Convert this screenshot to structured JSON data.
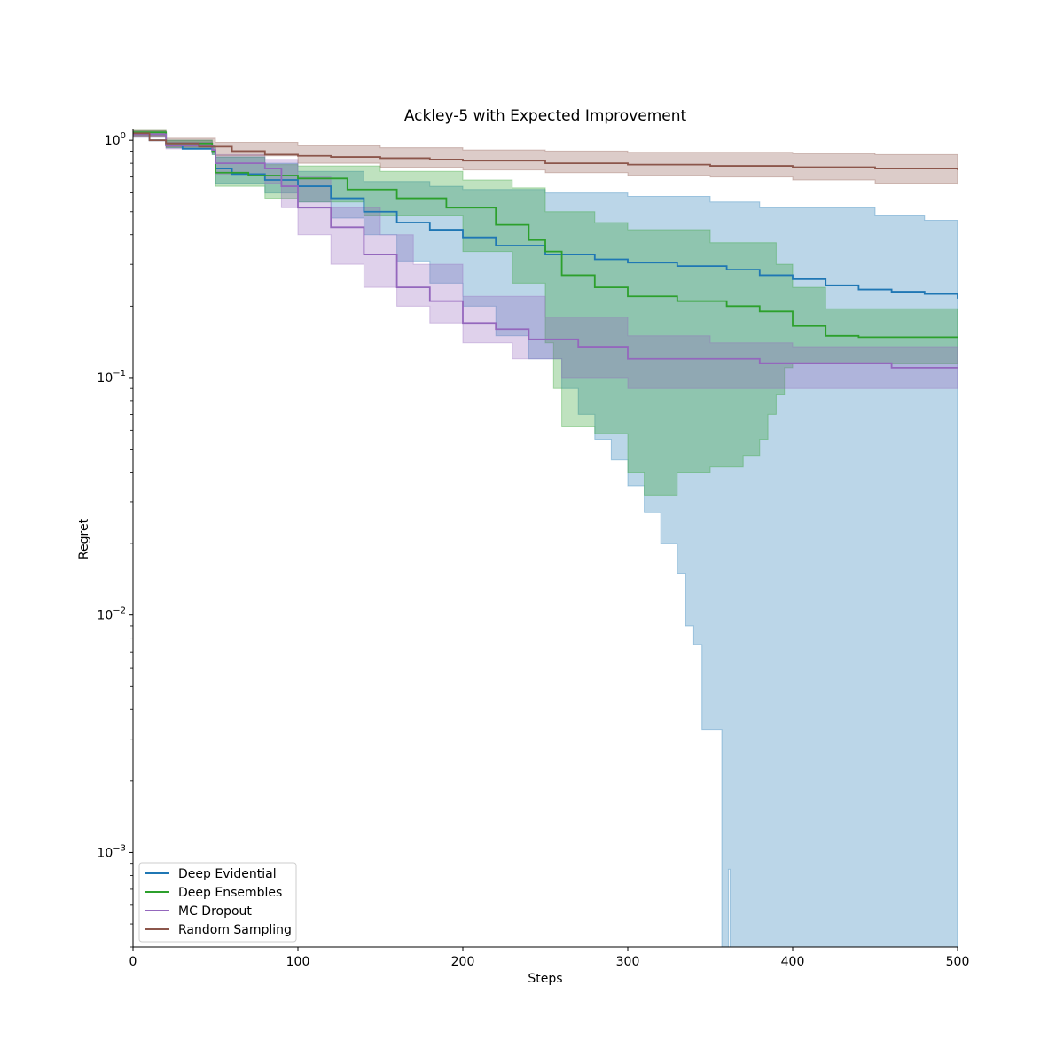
{
  "chart_data": {
    "type": "line",
    "title": "Ackley-5 with Expected Improvement",
    "xlabel": "Steps",
    "ylabel": "Regret",
    "xlim": [
      0,
      500
    ],
    "ylim": [
      0.0004,
      1.12
    ],
    "yscale": "log",
    "xticks": [
      {
        "value": 0,
        "label": "0"
      },
      {
        "value": 100,
        "label": "100"
      },
      {
        "value": 200,
        "label": "200"
      },
      {
        "value": 300,
        "label": "300"
      },
      {
        "value": 400,
        "label": "400"
      },
      {
        "value": 500,
        "label": "500"
      }
    ],
    "yticks": [
      {
        "value": 1,
        "base": "10",
        "exp": "0"
      },
      {
        "value": 0.1,
        "base": "10",
        "exp": "−1"
      },
      {
        "value": 0.01,
        "base": "10",
        "exp": "−2"
      },
      {
        "value": 0.001,
        "base": "10",
        "exp": "−3"
      }
    ],
    "grid": false,
    "legend_position": "lower-left",
    "series": [
      {
        "name": "Deep Evidential",
        "color": "#1f77b4",
        "mean": [
          [
            0,
            1.07
          ],
          [
            10,
            1.0
          ],
          [
            20,
            0.95
          ],
          [
            30,
            0.92
          ],
          [
            48,
            0.9
          ],
          [
            50,
            0.76
          ],
          [
            60,
            0.72
          ],
          [
            80,
            0.68
          ],
          [
            100,
            0.64
          ],
          [
            120,
            0.57
          ],
          [
            140,
            0.5
          ],
          [
            160,
            0.45
          ],
          [
            180,
            0.42
          ],
          [
            200,
            0.39
          ],
          [
            220,
            0.36
          ],
          [
            250,
            0.33
          ],
          [
            280,
            0.315
          ],
          [
            300,
            0.305
          ],
          [
            330,
            0.295
          ],
          [
            360,
            0.285
          ],
          [
            380,
            0.27
          ],
          [
            400,
            0.26
          ],
          [
            420,
            0.245
          ],
          [
            440,
            0.235
          ],
          [
            460,
            0.23
          ],
          [
            480,
            0.225
          ],
          [
            500,
            0.215
          ]
        ],
        "upper": [
          [
            0,
            1.09
          ],
          [
            20,
            1.0
          ],
          [
            48,
            0.95
          ],
          [
            50,
            0.85
          ],
          [
            80,
            0.8
          ],
          [
            100,
            0.74
          ],
          [
            140,
            0.67
          ],
          [
            180,
            0.64
          ],
          [
            200,
            0.62
          ],
          [
            250,
            0.6
          ],
          [
            300,
            0.58
          ],
          [
            350,
            0.55
          ],
          [
            380,
            0.52
          ],
          [
            400,
            0.52
          ],
          [
            450,
            0.48
          ],
          [
            480,
            0.46
          ],
          [
            500,
            0.44
          ]
        ],
        "lower": [
          [
            0,
            1.03
          ],
          [
            20,
            0.93
          ],
          [
            48,
            0.87
          ],
          [
            50,
            0.66
          ],
          [
            80,
            0.6
          ],
          [
            100,
            0.55
          ],
          [
            120,
            0.47
          ],
          [
            140,
            0.4
          ],
          [
            160,
            0.31
          ],
          [
            180,
            0.25
          ],
          [
            200,
            0.2
          ],
          [
            220,
            0.15
          ],
          [
            240,
            0.12
          ],
          [
            260,
            0.09
          ],
          [
            270,
            0.07
          ],
          [
            280,
            0.055
          ],
          [
            290,
            0.045
          ],
          [
            300,
            0.035
          ],
          [
            310,
            0.027
          ],
          [
            320,
            0.02
          ],
          [
            330,
            0.015
          ],
          [
            335,
            0.009
          ],
          [
            340,
            0.0075
          ],
          [
            345,
            0.0033
          ],
          [
            355,
            0.0033
          ],
          [
            357,
            0.0004
          ],
          [
            358,
            0.0004
          ],
          [
            361,
            0.00085
          ],
          [
            362,
            0.0004
          ],
          [
            500,
            0.0004
          ]
        ]
      },
      {
        "name": "Deep Ensembles",
        "color": "#2ca02c",
        "mean": [
          [
            0,
            1.08
          ],
          [
            20,
            0.97
          ],
          [
            48,
            0.9
          ],
          [
            50,
            0.73
          ],
          [
            70,
            0.71
          ],
          [
            100,
            0.69
          ],
          [
            130,
            0.62
          ],
          [
            160,
            0.57
          ],
          [
            190,
            0.52
          ],
          [
            220,
            0.44
          ],
          [
            240,
            0.38
          ],
          [
            250,
            0.34
          ],
          [
            260,
            0.27
          ],
          [
            280,
            0.24
          ],
          [
            300,
            0.22
          ],
          [
            330,
            0.21
          ],
          [
            360,
            0.2
          ],
          [
            380,
            0.19
          ],
          [
            400,
            0.165
          ],
          [
            420,
            0.15
          ],
          [
            440,
            0.148
          ],
          [
            500,
            0.148
          ]
        ],
        "upper": [
          [
            0,
            1.1
          ],
          [
            20,
            1.0
          ],
          [
            48,
            0.93
          ],
          [
            50,
            0.85
          ],
          [
            80,
            0.79
          ],
          [
            100,
            0.78
          ],
          [
            150,
            0.74
          ],
          [
            200,
            0.68
          ],
          [
            230,
            0.63
          ],
          [
            250,
            0.5
          ],
          [
            280,
            0.45
          ],
          [
            300,
            0.42
          ],
          [
            350,
            0.37
          ],
          [
            390,
            0.3
          ],
          [
            400,
            0.24
          ],
          [
            420,
            0.195
          ],
          [
            500,
            0.19
          ]
        ],
        "lower": [
          [
            0,
            1.05
          ],
          [
            20,
            0.93
          ],
          [
            48,
            0.87
          ],
          [
            50,
            0.64
          ],
          [
            80,
            0.57
          ],
          [
            100,
            0.55
          ],
          [
            140,
            0.48
          ],
          [
            200,
            0.34
          ],
          [
            230,
            0.25
          ],
          [
            250,
            0.14
          ],
          [
            255,
            0.09
          ],
          [
            260,
            0.062
          ],
          [
            280,
            0.058
          ],
          [
            300,
            0.04
          ],
          [
            310,
            0.032
          ],
          [
            320,
            0.032
          ],
          [
            330,
            0.04
          ],
          [
            350,
            0.042
          ],
          [
            370,
            0.047
          ],
          [
            380,
            0.055
          ],
          [
            385,
            0.07
          ],
          [
            390,
            0.085
          ],
          [
            395,
            0.11
          ],
          [
            400,
            0.115
          ],
          [
            500,
            0.115
          ]
        ]
      },
      {
        "name": "MC Dropout",
        "color": "#9467bd",
        "mean": [
          [
            0,
            1.06
          ],
          [
            20,
            0.95
          ],
          [
            48,
            0.91
          ],
          [
            50,
            0.8
          ],
          [
            80,
            0.76
          ],
          [
            90,
            0.64
          ],
          [
            100,
            0.52
          ],
          [
            120,
            0.43
          ],
          [
            140,
            0.33
          ],
          [
            160,
            0.24
          ],
          [
            180,
            0.21
          ],
          [
            200,
            0.17
          ],
          [
            220,
            0.16
          ],
          [
            240,
            0.145
          ],
          [
            270,
            0.135
          ],
          [
            300,
            0.12
          ],
          [
            360,
            0.12
          ],
          [
            380,
            0.115
          ],
          [
            450,
            0.115
          ],
          [
            460,
            0.11
          ],
          [
            500,
            0.11
          ]
        ],
        "upper": [
          [
            0,
            1.08
          ],
          [
            20,
            0.98
          ],
          [
            48,
            0.94
          ],
          [
            50,
            0.87
          ],
          [
            80,
            0.83
          ],
          [
            100,
            0.7
          ],
          [
            120,
            0.52
          ],
          [
            150,
            0.4
          ],
          [
            170,
            0.3
          ],
          [
            200,
            0.22
          ],
          [
            250,
            0.18
          ],
          [
            300,
            0.15
          ],
          [
            350,
            0.14
          ],
          [
            400,
            0.135
          ],
          [
            450,
            0.135
          ],
          [
            500,
            0.135
          ]
        ],
        "lower": [
          [
            0,
            1.03
          ],
          [
            20,
            0.92
          ],
          [
            48,
            0.88
          ],
          [
            50,
            0.72
          ],
          [
            80,
            0.66
          ],
          [
            90,
            0.52
          ],
          [
            100,
            0.4
          ],
          [
            120,
            0.3
          ],
          [
            140,
            0.24
          ],
          [
            160,
            0.2
          ],
          [
            180,
            0.17
          ],
          [
            200,
            0.14
          ],
          [
            230,
            0.12
          ],
          [
            260,
            0.1
          ],
          [
            300,
            0.09
          ],
          [
            350,
            0.09
          ],
          [
            400,
            0.09
          ],
          [
            500,
            0.09
          ]
        ]
      },
      {
        "name": "Random Sampling",
        "color": "#8c564b",
        "mean": [
          [
            0,
            1.07
          ],
          [
            10,
            1.0
          ],
          [
            20,
            0.97
          ],
          [
            40,
            0.94
          ],
          [
            60,
            0.9
          ],
          [
            80,
            0.87
          ],
          [
            100,
            0.86
          ],
          [
            120,
            0.85
          ],
          [
            150,
            0.84
          ],
          [
            180,
            0.83
          ],
          [
            200,
            0.82
          ],
          [
            250,
            0.8
          ],
          [
            300,
            0.79
          ],
          [
            350,
            0.78
          ],
          [
            400,
            0.77
          ],
          [
            450,
            0.76
          ],
          [
            500,
            0.75
          ]
        ],
        "upper": [
          [
            0,
            1.1
          ],
          [
            20,
            1.02
          ],
          [
            50,
            0.98
          ],
          [
            100,
            0.95
          ],
          [
            150,
            0.93
          ],
          [
            200,
            0.91
          ],
          [
            250,
            0.9
          ],
          [
            300,
            0.89
          ],
          [
            350,
            0.89
          ],
          [
            400,
            0.88
          ],
          [
            450,
            0.87
          ],
          [
            500,
            0.87
          ]
        ],
        "lower": [
          [
            0,
            1.04
          ],
          [
            20,
            0.94
          ],
          [
            50,
            0.86
          ],
          [
            100,
            0.8
          ],
          [
            150,
            0.77
          ],
          [
            200,
            0.75
          ],
          [
            250,
            0.73
          ],
          [
            300,
            0.71
          ],
          [
            350,
            0.7
          ],
          [
            400,
            0.68
          ],
          [
            450,
            0.66
          ],
          [
            500,
            0.65
          ]
        ]
      }
    ]
  }
}
